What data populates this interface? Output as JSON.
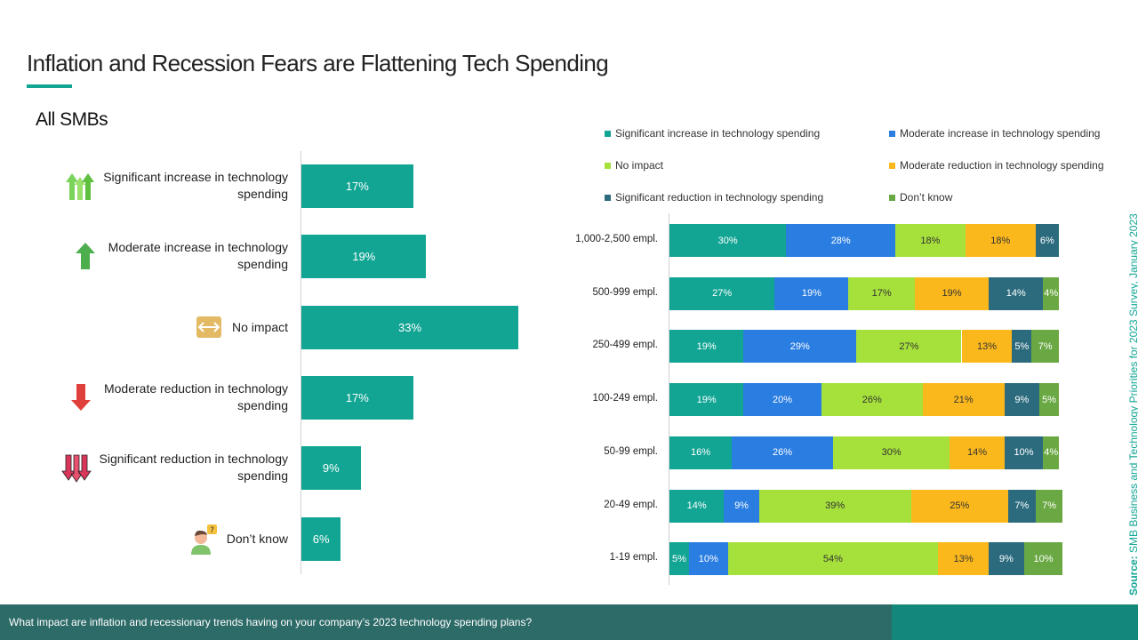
{
  "title": "Inflation and Recession Fears are Flattening Tech Spending",
  "subtitle": "All SMBs",
  "source_label": "Source:",
  "source_text": " SMB Business and Technology Priorities for 2023 Survey, January 2023",
  "footer_question": "What impact are inflation and recessionary trends having on your company’s 2023 technology spending plans?",
  "colors": {
    "significant_increase": "#12a594",
    "moderate_increase": "#2a7de1",
    "no_impact": "#a6e13b",
    "moderate_reduction": "#fbb81d",
    "significant_reduction": "#2c6b7e",
    "dont_know": "#6aa843"
  },
  "chart_data": [
    {
      "type": "bar",
      "orientation": "horizontal",
      "categories": [
        "Significant increase in technology spending",
        "Moderate increase in technology spending",
        "No impact",
        "Moderate reduction in technology spending",
        "Significant reduction in technology spending",
        "Don’t know"
      ],
      "icons": [
        "double-up-arrow-icon",
        "up-arrow-icon",
        "horizontal-arrow-icon",
        "down-arrow-icon",
        "double-down-arrow-icon",
        "confused-person-icon"
      ],
      "values": [
        17,
        19,
        33,
        17,
        9,
        6
      ],
      "labels": [
        "17%",
        "19%",
        "33%",
        "17%",
        "9%",
        "6%"
      ],
      "xlim": [
        0,
        100
      ]
    },
    {
      "type": "bar",
      "orientation": "horizontal",
      "stacked": true,
      "legend_position": "top",
      "categories": [
        "1,000-2,500 empl.",
        "500-999 empl.",
        "250-499 empl.",
        "100-249 empl.",
        "50-99 empl.",
        "20-49 empl.",
        "1-19 empl."
      ],
      "series": [
        {
          "name": "Significant increase in technology spending",
          "color": "#12a594",
          "values": [
            30,
            27,
            19,
            19,
            16,
            14,
            5
          ]
        },
        {
          "name": "Moderate increase in technology spending",
          "color": "#2a7de1",
          "values": [
            28,
            19,
            29,
            20,
            26,
            9,
            10
          ]
        },
        {
          "name": "No impact",
          "color": "#a6e13b",
          "values": [
            18,
            17,
            27,
            26,
            30,
            39,
            54
          ]
        },
        {
          "name": "Moderate reduction in technology spending",
          "color": "#fbb81d",
          "values": [
            18,
            19,
            13,
            21,
            14,
            25,
            13
          ]
        },
        {
          "name": "Significant reduction in technology spending",
          "color": "#2c6b7e",
          "values": [
            6,
            14,
            5,
            9,
            10,
            7,
            9
          ]
        },
        {
          "name": "Don’t know",
          "color": "#6aa843",
          "values": [
            0,
            4,
            7,
            5,
            4,
            7,
            10
          ]
        }
      ]
    }
  ]
}
